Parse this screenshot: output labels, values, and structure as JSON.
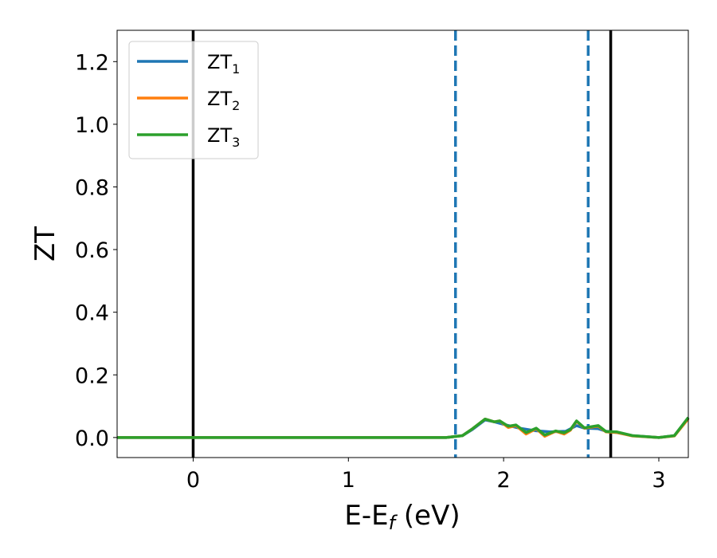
{
  "chart_data": {
    "type": "line",
    "xlabel": "E-E",
    "xlabel_sub": "f",
    "xlabel_unit": " (eV)",
    "ylabel": "ZT",
    "xlim": [
      -0.49,
      3.19
    ],
    "ylim": [
      -0.064,
      1.3
    ],
    "xticks": [
      0,
      1,
      2,
      3
    ],
    "yticks": [
      0.0,
      0.2,
      0.4,
      0.6,
      0.8,
      1.0,
      1.2
    ],
    "grid": false,
    "legend_placement": "top-left",
    "vlines": [
      {
        "x": 0,
        "color": "#000000",
        "style": "solid"
      },
      {
        "x": 1.69,
        "color": "#1f77b4",
        "style": "dashed"
      },
      {
        "x": 2.545,
        "color": "#1f77b4",
        "style": "dashed"
      },
      {
        "x": 2.69,
        "color": "#000000",
        "style": "solid"
      }
    ],
    "series": [
      {
        "name": "ZT",
        "sub": "1",
        "color": "#1f77b4",
        "x": [
          -0.49,
          1.63,
          1.735,
          1.8,
          1.88,
          1.94,
          2.0,
          2.1,
          2.2,
          2.3,
          2.4,
          2.47,
          2.52,
          2.61,
          2.66,
          2.73,
          2.83,
          3.0,
          3.1,
          3.19
        ],
        "y": [
          0,
          0,
          0.006,
          0.026,
          0.056,
          0.05,
          0.042,
          0.03,
          0.022,
          0.018,
          0.02,
          0.038,
          0.03,
          0.028,
          0.02,
          0.016,
          0.006,
          0,
          0.006,
          0.062
        ]
      },
      {
        "name": "ZT",
        "sub": "2",
        "color": "#ff7f0e",
        "x": [
          -0.49,
          1.63,
          1.735,
          1.8,
          1.88,
          1.94,
          1.975,
          2.03,
          2.08,
          2.145,
          2.21,
          2.265,
          2.335,
          2.39,
          2.43,
          2.47,
          2.52,
          2.61,
          2.66,
          2.73,
          2.83,
          3.0,
          3.1,
          3.19
        ],
        "y": [
          0,
          0,
          0.006,
          0.028,
          0.059,
          0.05,
          0.053,
          0.032,
          0.038,
          0.011,
          0.028,
          0.004,
          0.02,
          0.011,
          0.023,
          0.052,
          0.03,
          0.036,
          0.018,
          0.016,
          0.005,
          0,
          0.005,
          0.06
        ]
      },
      {
        "name": "ZT",
        "sub": "3",
        "color": "#2ca02c",
        "x": [
          -0.49,
          1.63,
          1.735,
          1.8,
          1.88,
          1.94,
          1.975,
          2.03,
          2.08,
          2.145,
          2.21,
          2.265,
          2.335,
          2.39,
          2.43,
          2.47,
          2.52,
          2.61,
          2.66,
          2.73,
          2.83,
          3.0,
          3.1,
          3.19
        ],
        "y": [
          0,
          0,
          0.006,
          0.028,
          0.059,
          0.05,
          0.053,
          0.036,
          0.04,
          0.016,
          0.03,
          0.008,
          0.021,
          0.015,
          0.025,
          0.053,
          0.031,
          0.038,
          0.019,
          0.018,
          0.006,
          0,
          0.006,
          0.064
        ]
      }
    ]
  }
}
